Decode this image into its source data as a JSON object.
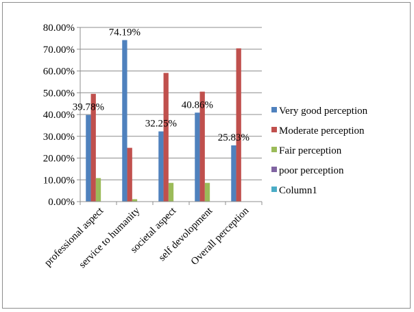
{
  "chart_data": {
    "type": "bar",
    "categories": [
      "professional aspect",
      "service to humanity",
      "societal aspect",
      "self devolopment",
      "Overall perception"
    ],
    "series": [
      {
        "name": "Very good perception",
        "color": "#4F81BD",
        "values": [
          39.78,
          74.19,
          32.25,
          40.86,
          25.83
        ]
      },
      {
        "name": "Moderate perception",
        "color": "#C0504D",
        "values": [
          49.5,
          24.7,
          59.1,
          50.5,
          70.4
        ]
      },
      {
        "name": "Fair perception",
        "color": "#9BBB59",
        "values": [
          10.8,
          1.1,
          8.6,
          8.6,
          0
        ]
      },
      {
        "name": "poor perception",
        "color": "#8064A2",
        "values": [
          0,
          0,
          0,
          0,
          0
        ]
      },
      {
        "name": "Column1",
        "color": "#4BACC6",
        "values": [
          0,
          0,
          0,
          0,
          0
        ]
      }
    ],
    "data_labels": [
      "39.78%",
      "74.19%",
      "32.25%",
      "40.86%",
      "25.83%"
    ],
    "yticks": [
      "0.00%",
      "10.00%",
      "20.00%",
      "30.00%",
      "40.00%",
      "50.00%",
      "60.00%",
      "70.00%",
      "80.00%"
    ],
    "ylim": [
      0,
      80
    ],
    "ystep": 10,
    "grid": true,
    "legend_position": "right",
    "title": "",
    "xlabel": "",
    "ylabel": ""
  }
}
